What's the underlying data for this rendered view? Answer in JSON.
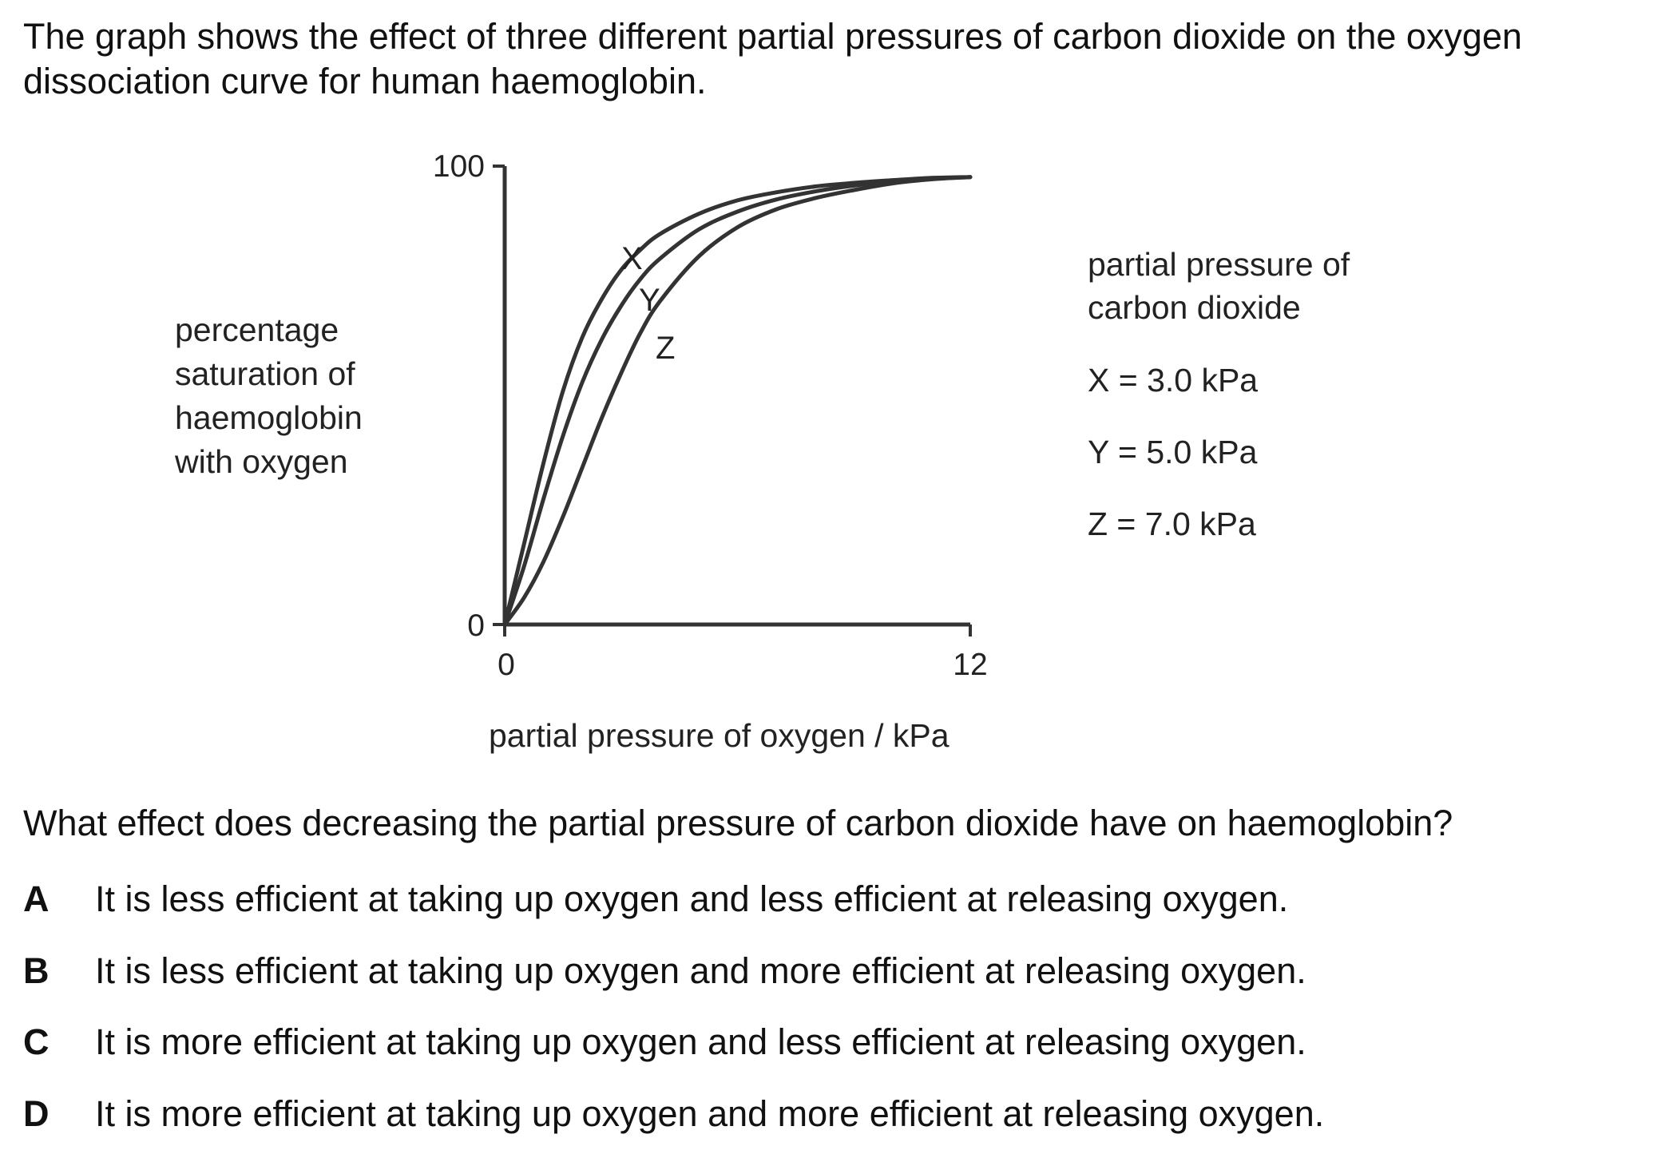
{
  "intro": "The graph shows the effect of three different partial pressures of carbon dioxide on the oxygen dissociation curve for human haemoglobin.",
  "question": "What effect does decreasing the partial pressure of carbon dioxide have on haemoglobin?",
  "options": [
    {
      "letter": "A",
      "text": "It is less efficient at taking up oxygen and less efficient at releasing oxygen."
    },
    {
      "letter": "B",
      "text": "It is less efficient at taking up oxygen and more efficient at releasing oxygen."
    },
    {
      "letter": "C",
      "text": "It is more efficient at taking up oxygen and less efficient at releasing oxygen."
    },
    {
      "letter": "D",
      "text": "It is more efficient at taking up oxygen and more efficient at releasing oxygen."
    }
  ],
  "chart_data": {
    "type": "line",
    "title": "",
    "xlabel": "partial pressure of oxygen / kPa",
    "ylabel_lines": [
      "percentage",
      "saturation of",
      "haemoglobin",
      "with oxygen"
    ],
    "xlim": [
      0,
      12
    ],
    "ylim": [
      0,
      100
    ],
    "x_ticks": [
      "0",
      "12"
    ],
    "y_ticks": [
      "0",
      "100"
    ],
    "grid": false,
    "legend_title_lines": [
      "partial pressure of",
      "carbon dioxide"
    ],
    "legend_entries": [
      "X = 3.0 kPa",
      "Y = 5.0 kPa",
      "Z = 7.0 kPa"
    ],
    "line_color": "#333333",
    "series": [
      {
        "name": "X",
        "x": [
          0,
          0.5,
          1,
          1.5,
          2,
          2.5,
          3,
          3.5,
          4,
          5,
          6,
          7,
          8,
          9,
          10,
          11,
          12
        ],
        "y": [
          0,
          18,
          36,
          52,
          64,
          72.5,
          79,
          83.5,
          87,
          91.5,
          94.5,
          96.3,
          97.6,
          98.4,
          99,
          99.5,
          99.7
        ]
      },
      {
        "name": "Y",
        "x": [
          0,
          0.5,
          1,
          1.5,
          2,
          2.5,
          3,
          3.5,
          4,
          5,
          6,
          7,
          8,
          9,
          10,
          11,
          12
        ],
        "y": [
          0,
          13,
          28,
          42,
          54,
          63.5,
          71,
          77,
          81.5,
          88,
          92,
          94.7,
          96.5,
          97.8,
          98.7,
          99.3,
          99.7
        ]
      },
      {
        "name": "Z",
        "x": [
          0,
          0.5,
          1,
          1.5,
          2,
          2.5,
          3,
          3.5,
          4,
          5,
          6,
          7,
          8,
          9,
          10,
          11,
          12
        ],
        "y": [
          0,
          6,
          14,
          24,
          35,
          46,
          56,
          65,
          72,
          82,
          88.5,
          92.5,
          95,
          96.8,
          98.3,
          99.2,
          99.7
        ]
      }
    ]
  }
}
